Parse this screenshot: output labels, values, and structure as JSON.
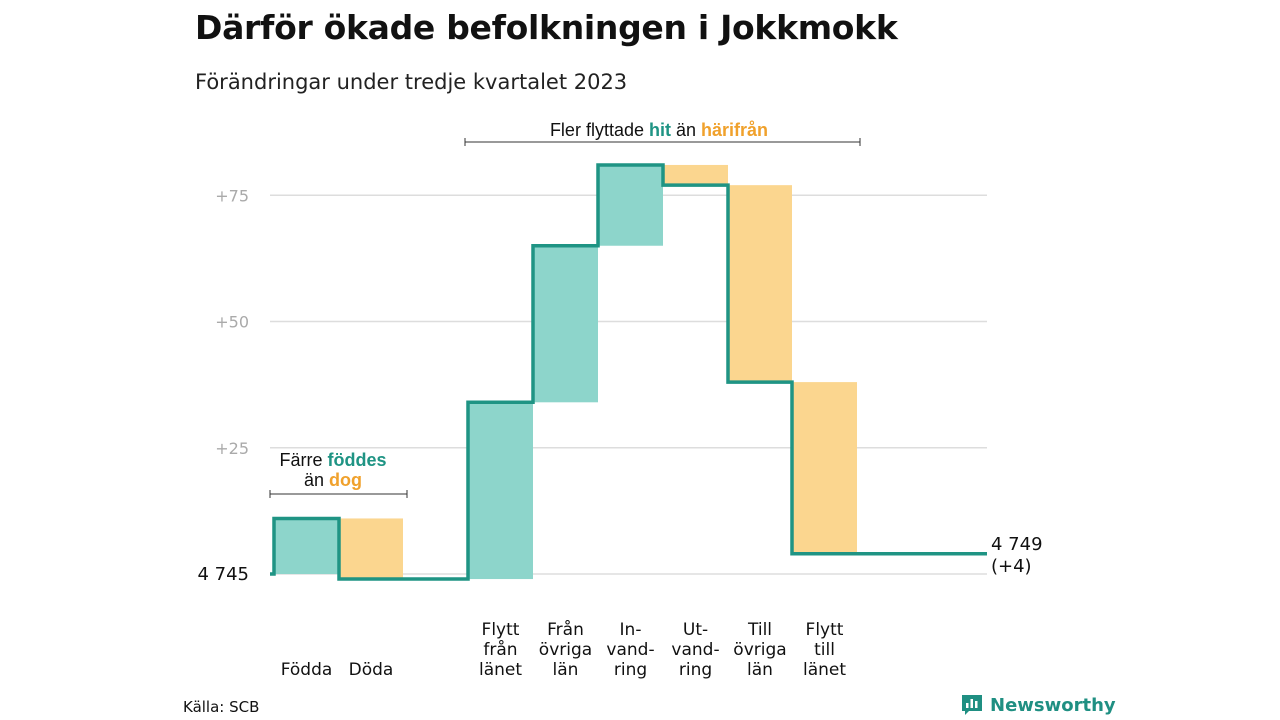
{
  "title": "Därför ökade befolkningen i Jokkmokk",
  "subtitle": "Förändringar under tredje kvartalet 2023",
  "source": "Källa: SCB",
  "brand": "Newsworthy",
  "colors": {
    "line": "#1f9484",
    "positive": "#8dd5cb",
    "negative": "#fbd68f",
    "teal_text": "#1f9484",
    "orange_text": "#f0a12c",
    "grid": "#dddddd",
    "tick": "#aaaaaa"
  },
  "annotations": {
    "births": {
      "prefix": "Färre ",
      "highlight1": "föddes",
      "line2_prefix": "än ",
      "highlight2": "dog"
    },
    "migration": {
      "prefix": "Fler flyttade ",
      "highlight1": "hit",
      "middle": " än ",
      "highlight2": "härifrån"
    }
  },
  "chart_data": {
    "type": "waterfall",
    "title": "Därför ökade befolkningen i Jokkmokk",
    "subtitle": "Förändringar under tredje kvartalet 2023",
    "base_label": "4 745",
    "end_label": "4 749",
    "end_change_label": "(+4)",
    "y_ticks": [
      25,
      50,
      75
    ],
    "y_tick_labels": [
      "+25",
      "+50",
      "+75"
    ],
    "ylim": [
      -1,
      84
    ],
    "grid": true,
    "steps": [
      {
        "label": [
          "Födda"
        ],
        "value": 11,
        "direction": "in"
      },
      {
        "label": [
          "Döda"
        ],
        "value": -12,
        "direction": "out"
      },
      {
        "label": [
          "Flytt",
          "från",
          "länet"
        ],
        "value": 35,
        "direction": "in"
      },
      {
        "label": [
          "Från",
          "övriga",
          "län"
        ],
        "value": 31,
        "direction": "in"
      },
      {
        "label": [
          "In-",
          "vand-",
          "ring"
        ],
        "value": 16,
        "direction": "in"
      },
      {
        "label": [
          "Ut-",
          "vand-",
          "ring"
        ],
        "value": -4,
        "direction": "out"
      },
      {
        "label": [
          "Till",
          "övriga",
          "län"
        ],
        "value": -39,
        "direction": "out"
      },
      {
        "label": [
          "Flytt",
          "till",
          "länet"
        ],
        "value": -34,
        "direction": "out"
      }
    ],
    "final_change": 4
  }
}
